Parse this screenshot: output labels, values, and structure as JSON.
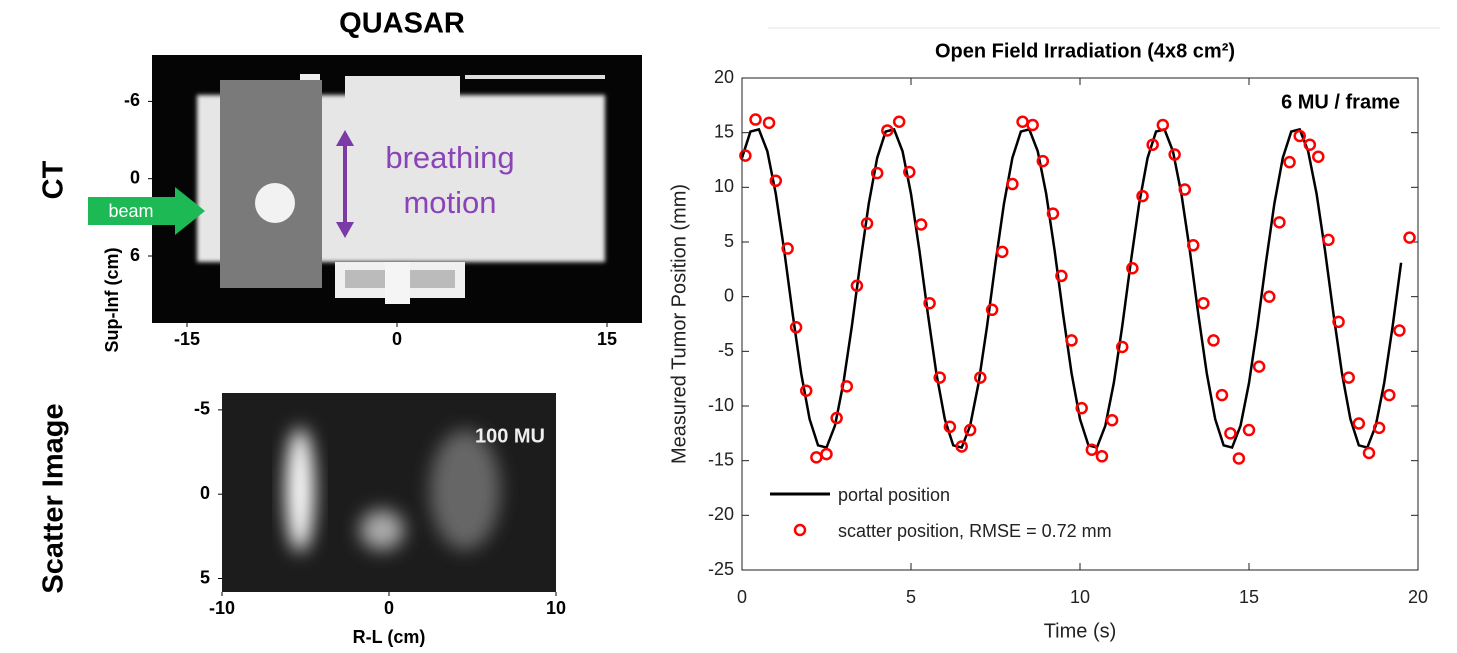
{
  "chart_data": [
    {
      "type": "image",
      "title": "QUASAR",
      "panel_label": "CT",
      "ylabel": "Sup-Inf (cm)",
      "annotations": [
        "beam",
        "breathing",
        "motion"
      ],
      "xlim": [
        -17.5,
        17.5
      ],
      "xticks": [
        -15,
        0,
        15
      ],
      "ylim": [
        11.2,
        -9.6
      ],
      "yticks": [
        -6,
        0,
        6
      ]
    },
    {
      "type": "image",
      "panel_label": "Scatter Image",
      "xlabel": "R-L (cm)",
      "annotations": [
        "100 MU"
      ],
      "xlim": [
        -10,
        10
      ],
      "xticks": [
        -10,
        0,
        10
      ],
      "ylim": [
        5.8,
        -6
      ],
      "yticks": [
        -5,
        0,
        5
      ]
    },
    {
      "type": "line",
      "title": "Open Field Irradiation (4x8 cm²)",
      "xlabel": "Time (s)",
      "ylabel": "Measured Tumor Position (mm)",
      "annotations": [
        "6 MU / frame"
      ],
      "legend": "lower left",
      "xlim": [
        0,
        20
      ],
      "xticks": [
        0,
        5,
        10,
        15,
        20
      ],
      "ylim": [
        -25,
        20
      ],
      "yticks": [
        -25,
        -20,
        -15,
        -10,
        -5,
        0,
        5,
        10,
        15,
        20
      ],
      "series": [
        {
          "name": "portal position",
          "color": "#000000",
          "marker": "none",
          "x": [
            0,
            0.25,
            0.5,
            0.75,
            1,
            1.25,
            1.5,
            1.75,
            2,
            2.25,
            2.5,
            2.75,
            3,
            3.25,
            3.5,
            3.75,
            4,
            4.25,
            4.5,
            4.75,
            5,
            5.25,
            5.5,
            5.75,
            6,
            6.25,
            6.5,
            6.75,
            7,
            7.25,
            7.5,
            7.75,
            8,
            8.25,
            8.5,
            8.75,
            9,
            9.25,
            9.5,
            9.75,
            10,
            10.25,
            10.5,
            10.75,
            11,
            11.25,
            11.5,
            11.75,
            12,
            12.25,
            12.5,
            12.75,
            13,
            13.25,
            13.5,
            13.75,
            14,
            14.25,
            14.5,
            14.75,
            15,
            15.25,
            15.5,
            15.75,
            16,
            16.25,
            16.5,
            16.75,
            17,
            17.25,
            17.5,
            17.75,
            18,
            18.25,
            18.5,
            18.75,
            19,
            19.25,
            19.5
          ],
          "values": [
            12.7,
            15.1,
            15.3,
            13.3,
            9.4,
            4.2,
            -1.6,
            -7.0,
            -11.2,
            -13.6,
            -13.8,
            -11.8,
            -7.9,
            -2.7,
            3.1,
            8.5,
            12.7,
            15.1,
            15.3,
            13.3,
            9.4,
            4.2,
            -1.6,
            -7.0,
            -11.2,
            -13.6,
            -13.8,
            -11.8,
            -7.9,
            -2.7,
            3.1,
            8.5,
            12.7,
            15.1,
            15.3,
            13.3,
            9.4,
            4.2,
            -1.6,
            -7.0,
            -11.2,
            -13.6,
            -13.8,
            -11.8,
            -7.9,
            -2.7,
            3.1,
            8.5,
            12.7,
            15.1,
            15.3,
            13.3,
            9.4,
            4.2,
            -1.6,
            -7.0,
            -11.2,
            -13.6,
            -13.8,
            -11.8,
            -7.9,
            -2.7,
            3.1,
            8.5,
            12.7,
            15.1,
            15.3,
            13.3,
            9.4,
            4.2,
            -1.6,
            -7.0,
            -11.2,
            -13.6,
            -13.8,
            -11.8,
            -7.9,
            -2.7,
            3.1
          ]
        },
        {
          "name": "scatter position, RMSE = 0.72 mm",
          "color": "#ff0000",
          "marker": "circle",
          "x": [
            0.1,
            0.4,
            0.8,
            1.0,
            1.35,
            1.6,
            1.9,
            2.2,
            2.5,
            2.8,
            3.1,
            3.4,
            3.7,
            4.0,
            4.3,
            4.65,
            4.95,
            5.3,
            5.55,
            5.85,
            6.15,
            6.5,
            6.75,
            7.05,
            7.4,
            7.7,
            8.0,
            8.3,
            8.6,
            8.9,
            9.2,
            9.45,
            9.75,
            10.05,
            10.35,
            10.65,
            10.95,
            11.25,
            11.55,
            11.85,
            12.15,
            12.45,
            12.8,
            13.1,
            13.35,
            13.65,
            13.95,
            14.2,
            14.45,
            14.7,
            15.0,
            15.3,
            15.6,
            15.9,
            16.2,
            16.5,
            16.8,
            17.05,
            17.35,
            17.65,
            17.95,
            18.25,
            18.55,
            18.85,
            19.15,
            19.45,
            19.75
          ],
          "values": [
            12.9,
            16.2,
            15.9,
            10.6,
            4.4,
            -2.8,
            -8.6,
            -14.7,
            -14.4,
            -11.1,
            -8.2,
            1.0,
            6.7,
            11.3,
            15.2,
            16.0,
            11.4,
            6.6,
            -0.6,
            -7.4,
            -11.9,
            -13.7,
            -12.2,
            -7.4,
            -1.2,
            4.1,
            10.3,
            16.0,
            15.7,
            12.4,
            7.6,
            1.9,
            -4.0,
            -10.2,
            -14.0,
            -14.6,
            -11.3,
            -4.6,
            2.6,
            9.2,
            13.9,
            15.7,
            13.0,
            9.8,
            4.7,
            -0.6,
            -4.0,
            -9.0,
            -12.5,
            -14.8,
            -12.2,
            -6.4,
            0.0,
            6.8,
            12.3,
            14.7,
            13.9,
            12.8,
            5.2,
            -2.3,
            -7.4,
            -11.6,
            -14.3,
            -12.0,
            -9.0,
            -3.1,
            5.4
          ]
        }
      ]
    }
  ]
}
